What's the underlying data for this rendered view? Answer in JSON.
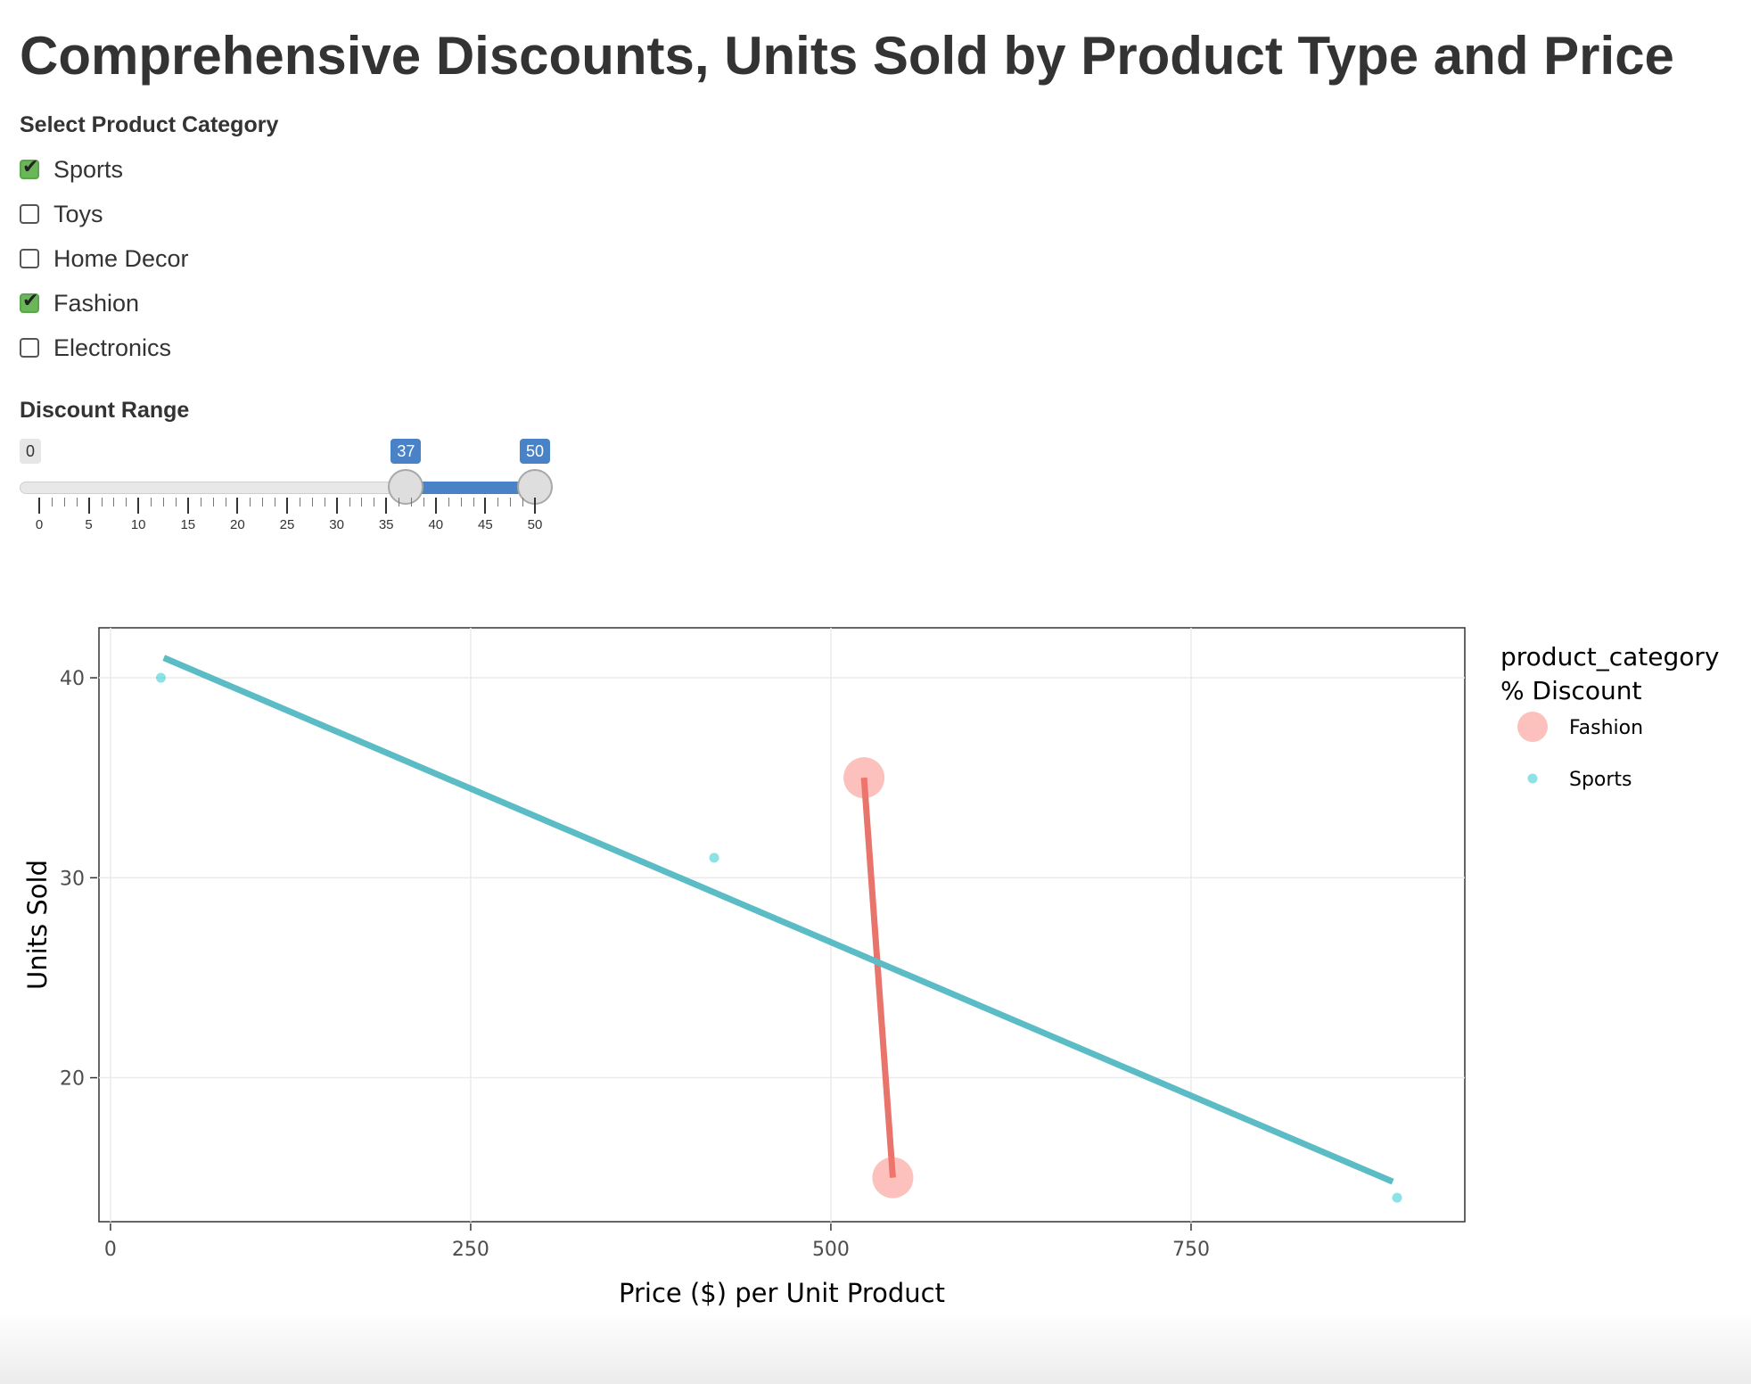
{
  "page": {
    "title": "Comprehensive Discounts, Units Sold by Product Type and Price"
  },
  "filters": {
    "category_label": "Select Product Category",
    "categories": [
      {
        "label": "Sports",
        "checked": true
      },
      {
        "label": "Toys",
        "checked": false
      },
      {
        "label": "Home Decor",
        "checked": false
      },
      {
        "label": "Fashion",
        "checked": true
      },
      {
        "label": "Electronics",
        "checked": false
      }
    ],
    "discount_label": "Discount Range",
    "discount_slider": {
      "min": 0,
      "max": 50,
      "from": 37,
      "to": 50,
      "min_label": "0",
      "from_label": "37",
      "to_label": "50",
      "ticks": [
        "0",
        "5",
        "10",
        "15",
        "20",
        "25",
        "30",
        "35",
        "40",
        "45",
        "50"
      ]
    }
  },
  "chart_data": {
    "type": "scatter",
    "xlabel": "Price ($) per Unit Product",
    "ylabel": "Units Sold",
    "xlim": [
      -8,
      940
    ],
    "ylim": [
      12.8,
      42.5
    ],
    "x_ticks": [
      0,
      250,
      500,
      750
    ],
    "x_tick_labels": [
      "0",
      "250",
      "500",
      "750"
    ],
    "y_ticks": [
      20,
      30,
      40
    ],
    "y_tick_labels": [
      "20",
      "30",
      "40"
    ],
    "grid": true,
    "legend": {
      "position": "right",
      "title_line1": "product_category",
      "title_line2": "% Discount",
      "entries": [
        "Fashion",
        "Sports"
      ]
    },
    "series": [
      {
        "name": "Fashion",
        "color": "#f8766d",
        "points": [
          {
            "x": 523,
            "y": 35,
            "discount": 45
          },
          {
            "x": 543,
            "y": 15,
            "discount": 46
          }
        ],
        "trend": {
          "x1": 523,
          "y1": 35,
          "x2": 543,
          "y2": 15
        }
      },
      {
        "name": "Sports",
        "color": "#00bfc4",
        "points": [
          {
            "x": 35,
            "y": 40,
            "discount": 38
          },
          {
            "x": 419,
            "y": 31,
            "discount": 38
          },
          {
            "x": 893,
            "y": 14,
            "discount": 38
          }
        ],
        "trend": {
          "x1": 37,
          "y1": 41,
          "x2": 890,
          "y2": 14.8
        }
      }
    ]
  }
}
